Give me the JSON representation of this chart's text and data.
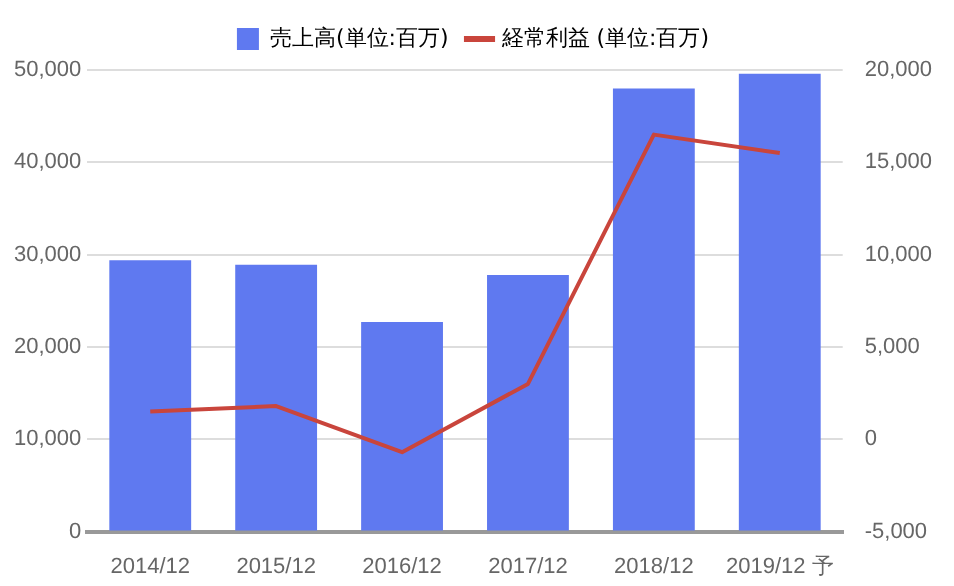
{
  "chart_data": {
    "type": "bar",
    "categories": [
      "2014/12",
      "2015/12",
      "2016/12",
      "2017/12",
      "2018/12",
      "2019/12 予"
    ],
    "series": [
      {
        "name": "売上高(単位:百万)",
        "color": "#5f79f0",
        "values": [
          29400,
          28900,
          22700,
          27800,
          48000,
          49600
        ]
      },
      {
        "name": "経常利益 (単位:百万)",
        "type": "line",
        "axis": "y2",
        "color": "#c9453c",
        "values": [
          1500,
          1800,
          -700,
          3000,
          16500,
          15500
        ]
      }
    ],
    "ylim": [
      0,
      50000
    ],
    "yticks": [
      0,
      {
        "value": 10000,
        "label": "10,000"
      },
      {
        "value": 20000,
        "label": "20,000"
      },
      {
        "value": 30000,
        "label": "30,000"
      },
      {
        "value": 40000,
        "label": "40,000"
      },
      {
        "value": 50000,
        "label": "50,000"
      }
    ],
    "y2lim": [
      -5000,
      20000
    ],
    "y2ticks": [
      {
        "value": -5000,
        "label": "-5,000"
      },
      0,
      {
        "value": 5000,
        "label": "5,000"
      },
      {
        "value": 10000,
        "label": "10,000"
      },
      {
        "value": 15000,
        "label": "15,000"
      },
      {
        "value": 20000,
        "label": "20,000"
      }
    ],
    "grid": "y",
    "legend": "top",
    "marker": "none"
  }
}
